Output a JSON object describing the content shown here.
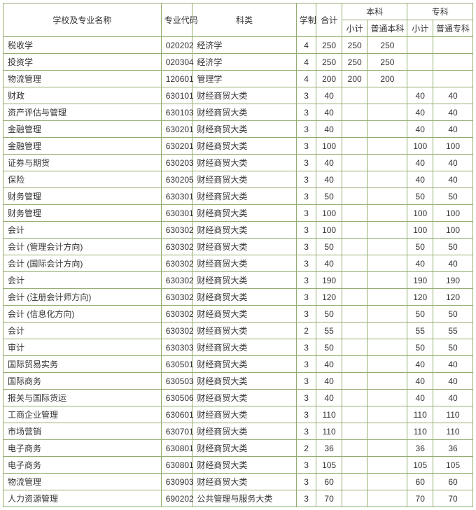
{
  "headers": {
    "name": "学校及专业名称",
    "code": "专业代码",
    "category": "科类",
    "duration": "学制",
    "total": "合计",
    "bachelor": "本科",
    "bachelor_sub": "小计",
    "bachelor_normal": "普通本科",
    "associate": "专科",
    "associate_sub": "小计",
    "associate_normal": "普通专科"
  },
  "rows": [
    {
      "name": "税收学",
      "code": "020202",
      "category": "经济学",
      "duration": "4",
      "total": "250",
      "bk_sub": "250",
      "bk_normal": "250",
      "zk_sub": "",
      "zk_normal": ""
    },
    {
      "name": "投资学",
      "code": "020304",
      "category": "经济学",
      "duration": "4",
      "total": "250",
      "bk_sub": "250",
      "bk_normal": "250",
      "zk_sub": "",
      "zk_normal": ""
    },
    {
      "name": "物流管理",
      "code": "120601",
      "category": "管理学",
      "duration": "4",
      "total": "200",
      "bk_sub": "200",
      "bk_normal": "200",
      "zk_sub": "",
      "zk_normal": ""
    },
    {
      "name": "财政",
      "code": "630101",
      "category": "财经商贸大类",
      "duration": "3",
      "total": "40",
      "bk_sub": "",
      "bk_normal": "",
      "zk_sub": "40",
      "zk_normal": "40"
    },
    {
      "name": "资产评估与管理",
      "code": "630103",
      "category": "财经商贸大类",
      "duration": "3",
      "total": "40",
      "bk_sub": "",
      "bk_normal": "",
      "zk_sub": "40",
      "zk_normal": "40"
    },
    {
      "name": "金融管理",
      "code": "630201",
      "category": "财经商贸大类",
      "duration": "3",
      "total": "40",
      "bk_sub": "",
      "bk_normal": "",
      "zk_sub": "40",
      "zk_normal": "40"
    },
    {
      "name": "金融管理",
      "code": "630201",
      "category": "财经商贸大类",
      "duration": "3",
      "total": "100",
      "bk_sub": "",
      "bk_normal": "",
      "zk_sub": "100",
      "zk_normal": "100"
    },
    {
      "name": "证券与期货",
      "code": "630203",
      "category": "财经商贸大类",
      "duration": "3",
      "total": "40",
      "bk_sub": "",
      "bk_normal": "",
      "zk_sub": "40",
      "zk_normal": "40"
    },
    {
      "name": "保险",
      "code": "630205",
      "category": "财经商贸大类",
      "duration": "3",
      "total": "40",
      "bk_sub": "",
      "bk_normal": "",
      "zk_sub": "40",
      "zk_normal": "40"
    },
    {
      "name": "财务管理",
      "code": "630301",
      "category": "财经商贸大类",
      "duration": "3",
      "total": "50",
      "bk_sub": "",
      "bk_normal": "",
      "zk_sub": "50",
      "zk_normal": "50"
    },
    {
      "name": "财务管理",
      "code": "630301",
      "category": "财经商贸大类",
      "duration": "3",
      "total": "100",
      "bk_sub": "",
      "bk_normal": "",
      "zk_sub": "100",
      "zk_normal": "100"
    },
    {
      "name": "会计",
      "code": "630302",
      "category": "财经商贸大类",
      "duration": "3",
      "total": "100",
      "bk_sub": "",
      "bk_normal": "",
      "zk_sub": "100",
      "zk_normal": "100"
    },
    {
      "name": "会计 (管理会计方向)",
      "code": "630302",
      "category": "财经商贸大类",
      "duration": "3",
      "total": "50",
      "bk_sub": "",
      "bk_normal": "",
      "zk_sub": "50",
      "zk_normal": "50"
    },
    {
      "name": "会计 (国际会计方向)",
      "code": "630302",
      "category": "财经商贸大类",
      "duration": "3",
      "total": "40",
      "bk_sub": "",
      "bk_normal": "",
      "zk_sub": "40",
      "zk_normal": "40"
    },
    {
      "name": "会计",
      "code": "630302",
      "category": "财经商贸大类",
      "duration": "3",
      "total": "190",
      "bk_sub": "",
      "bk_normal": "",
      "zk_sub": "190",
      "zk_normal": "190"
    },
    {
      "name": "会计 (注册会计师方向)",
      "code": "630302",
      "category": "财经商贸大类",
      "duration": "3",
      "total": "120",
      "bk_sub": "",
      "bk_normal": "",
      "zk_sub": "120",
      "zk_normal": "120"
    },
    {
      "name": "会计 (信息化方向)",
      "code": "630302",
      "category": "财经商贸大类",
      "duration": "3",
      "total": "50",
      "bk_sub": "",
      "bk_normal": "",
      "zk_sub": "50",
      "zk_normal": "50"
    },
    {
      "name": "会计",
      "code": "630302",
      "category": "财经商贸大类",
      "duration": "2",
      "total": "55",
      "bk_sub": "",
      "bk_normal": "",
      "zk_sub": "55",
      "zk_normal": "55"
    },
    {
      "name": "审计",
      "code": "630303",
      "category": "财经商贸大类",
      "duration": "3",
      "total": "50",
      "bk_sub": "",
      "bk_normal": "",
      "zk_sub": "50",
      "zk_normal": "50"
    },
    {
      "name": "国际贸易实务",
      "code": "630501",
      "category": "财经商贸大类",
      "duration": "3",
      "total": "40",
      "bk_sub": "",
      "bk_normal": "",
      "zk_sub": "40",
      "zk_normal": "40"
    },
    {
      "name": "国际商务",
      "code": "630503",
      "category": "财经商贸大类",
      "duration": "3",
      "total": "40",
      "bk_sub": "",
      "bk_normal": "",
      "zk_sub": "40",
      "zk_normal": "40"
    },
    {
      "name": "报关与国际货运",
      "code": "630506",
      "category": "财经商贸大类",
      "duration": "3",
      "total": "40",
      "bk_sub": "",
      "bk_normal": "",
      "zk_sub": "40",
      "zk_normal": "40"
    },
    {
      "name": "工商企业管理",
      "code": "630601",
      "category": "财经商贸大类",
      "duration": "3",
      "total": "110",
      "bk_sub": "",
      "bk_normal": "",
      "zk_sub": "110",
      "zk_normal": "110"
    },
    {
      "name": "市场营销",
      "code": "630701",
      "category": "财经商贸大类",
      "duration": "3",
      "total": "110",
      "bk_sub": "",
      "bk_normal": "",
      "zk_sub": "110",
      "zk_normal": "110"
    },
    {
      "name": "电子商务",
      "code": "630801",
      "category": "财经商贸大类",
      "duration": "2",
      "total": "36",
      "bk_sub": "",
      "bk_normal": "",
      "zk_sub": "36",
      "zk_normal": "36"
    },
    {
      "name": "电子商务",
      "code": "630801",
      "category": "财经商贸大类",
      "duration": "3",
      "total": "105",
      "bk_sub": "",
      "bk_normal": "",
      "zk_sub": "105",
      "zk_normal": "105"
    },
    {
      "name": "物流管理",
      "code": "630903",
      "category": "财经商贸大类",
      "duration": "3",
      "total": "60",
      "bk_sub": "",
      "bk_normal": "",
      "zk_sub": "60",
      "zk_normal": "60"
    },
    {
      "name": "人力资源管理",
      "code": "690202",
      "category": "公共管理与服务大类",
      "duration": "3",
      "total": "70",
      "bk_sub": "",
      "bk_normal": "",
      "zk_sub": "70",
      "zk_normal": "70"
    }
  ]
}
